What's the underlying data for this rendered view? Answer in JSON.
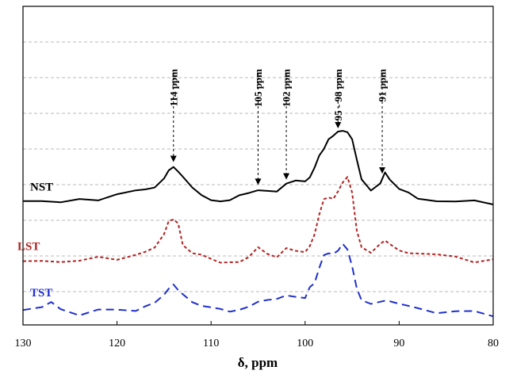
{
  "chart_data": {
    "type": "line",
    "title": "",
    "xlabel": "δ, ppm",
    "ylabel": "",
    "xlim": [
      130,
      80
    ],
    "x_reversed": true,
    "xticks": [
      130,
      120,
      110,
      100,
      90,
      80
    ],
    "grid": "horizontal-dashed",
    "series": [
      {
        "name": "NST",
        "color": "#000000",
        "dash": "solid",
        "x": [
          130,
          128,
          126,
          124,
          122,
          120,
          118,
          117,
          116,
          115,
          114.5,
          114,
          113.5,
          113,
          112,
          111,
          110,
          109,
          108,
          107,
          106,
          105,
          104,
          103,
          102,
          101,
          100,
          99.5,
          99,
          98.5,
          98,
          97.5,
          97,
          96.5,
          96,
          95.5,
          95,
          94.5,
          94,
          93,
          92,
          91.5,
          91,
          90,
          89,
          88,
          86,
          84,
          82,
          80
        ],
        "values": [
          0.18,
          0.2,
          0.18,
          0.2,
          0.22,
          0.3,
          0.32,
          0.36,
          0.42,
          0.56,
          0.66,
          0.7,
          0.64,
          0.52,
          0.36,
          0.28,
          0.24,
          0.22,
          0.2,
          0.24,
          0.28,
          0.36,
          0.38,
          0.36,
          0.44,
          0.46,
          0.46,
          0.56,
          0.7,
          0.88,
          1.0,
          1.1,
          1.18,
          1.2,
          1.22,
          1.2,
          1.08,
          0.82,
          0.5,
          0.36,
          0.48,
          0.6,
          0.52,
          0.36,
          0.3,
          0.22,
          0.2,
          0.18,
          0.2,
          0.14
        ]
      },
      {
        "name": "LST",
        "color": "#b22222",
        "dash": "short-dash",
        "x": [
          130,
          128,
          126,
          124,
          122,
          120,
          118,
          117,
          116,
          115,
          114.5,
          114,
          113.5,
          113,
          112,
          111,
          110,
          109,
          108,
          107,
          106,
          105,
          104,
          103,
          102,
          101,
          100,
          99.5,
          99,
          98.5,
          98,
          97.5,
          97,
          96.5,
          96,
          95.5,
          95,
          94.5,
          94,
          93,
          92,
          91.5,
          91,
          90,
          89,
          88,
          86,
          84,
          82,
          80
        ],
        "values": [
          0.18,
          0.16,
          0.2,
          0.18,
          0.22,
          0.24,
          0.26,
          0.28,
          0.36,
          0.6,
          0.78,
          0.84,
          0.74,
          0.44,
          0.28,
          0.24,
          0.2,
          0.18,
          0.2,
          0.18,
          0.22,
          0.36,
          0.28,
          0.26,
          0.4,
          0.34,
          0.3,
          0.4,
          0.56,
          0.9,
          1.1,
          1.16,
          1.12,
          1.22,
          1.36,
          1.4,
          1.2,
          0.6,
          0.38,
          0.3,
          0.44,
          0.52,
          0.44,
          0.34,
          0.3,
          0.3,
          0.28,
          0.24,
          0.18,
          0.2
        ]
      },
      {
        "name": "TST",
        "color": "#1f2fcf",
        "dash": "long-dash",
        "x": [
          130,
          128,
          127,
          126,
          124,
          122,
          120,
          118,
          117,
          116,
          115,
          114.5,
          114,
          113.5,
          113,
          112,
          111,
          110,
          109,
          108,
          107,
          106,
          105,
          104,
          103,
          102,
          101,
          100,
          99.5,
          99,
          98.5,
          98,
          97.5,
          97,
          96.5,
          96,
          95.5,
          95,
          94.5,
          94,
          93,
          92,
          91.5,
          91,
          90,
          89,
          88,
          86,
          84,
          82,
          80
        ],
        "values": [
          0.26,
          0.24,
          0.3,
          0.22,
          0.18,
          0.2,
          0.22,
          0.24,
          0.28,
          0.3,
          0.42,
          0.56,
          0.6,
          0.54,
          0.48,
          0.36,
          0.28,
          0.24,
          0.22,
          0.2,
          0.24,
          0.28,
          0.34,
          0.36,
          0.38,
          0.44,
          0.42,
          0.4,
          0.52,
          0.62,
          0.82,
          1.04,
          1.08,
          1.06,
          1.14,
          1.2,
          1.14,
          0.86,
          0.52,
          0.36,
          0.32,
          0.36,
          0.38,
          0.36,
          0.3,
          0.26,
          0.24,
          0.2,
          0.18,
          0.2,
          0.16
        ]
      }
    ],
    "annotations": [
      {
        "label": "114 ppm",
        "x": 114
      },
      {
        "label": "105 ppm",
        "x": 105
      },
      {
        "label": "102 ppm",
        "x": 102
      },
      {
        "label": "95 - 98 ppm",
        "x": 96.5
      },
      {
        "label": "91 ppm",
        "x": 91.8
      }
    ]
  }
}
